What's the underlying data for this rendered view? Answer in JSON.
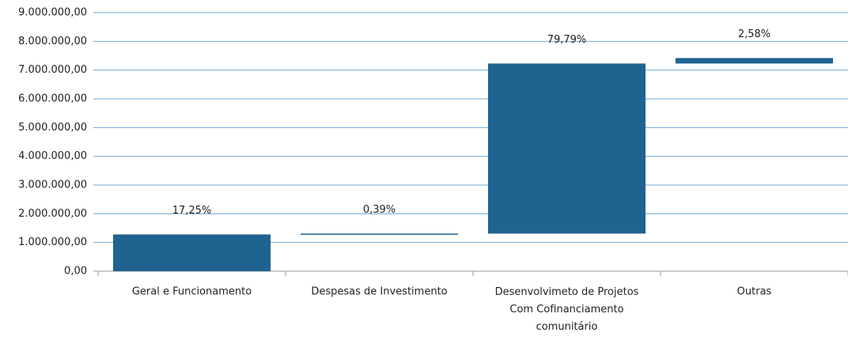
{
  "chart_data": {
    "type": "waterfall",
    "categories": [
      "Geral e Funcionamento",
      "Despesas de Investimento",
      "Desenvolvimeto de Projetos Com Cofinanciamento comunitário",
      "Outras"
    ],
    "values": [
      1280000,
      29000,
      5920000,
      191000
    ],
    "shares": [
      17.25,
      0.39,
      79.79,
      2.58
    ],
    "share_labels": [
      "17,25%",
      "0,39%",
      "79,79%",
      "2,58%"
    ],
    "color": "#1f6391",
    "ylim": [
      0,
      9000000
    ],
    "yticks": [
      {
        "value": 0,
        "label": "0,00"
      },
      {
        "value": 1000000,
        "label": "1.000.000,00"
      },
      {
        "value": 2000000,
        "label": "2.000.000,00"
      },
      {
        "value": 3000000,
        "label": "3.000.000,00"
      },
      {
        "value": 4000000,
        "label": "4.000.000,00"
      },
      {
        "value": 5000000,
        "label": "5.000.000,00"
      },
      {
        "value": 6000000,
        "label": "6.000.000,00"
      },
      {
        "value": 7000000,
        "label": "7.000.000,00"
      },
      {
        "value": 8000000,
        "label": "8.000.000,00"
      },
      {
        "value": 9000000,
        "label": "9.000.000,00"
      }
    ],
    "grid": true
  }
}
